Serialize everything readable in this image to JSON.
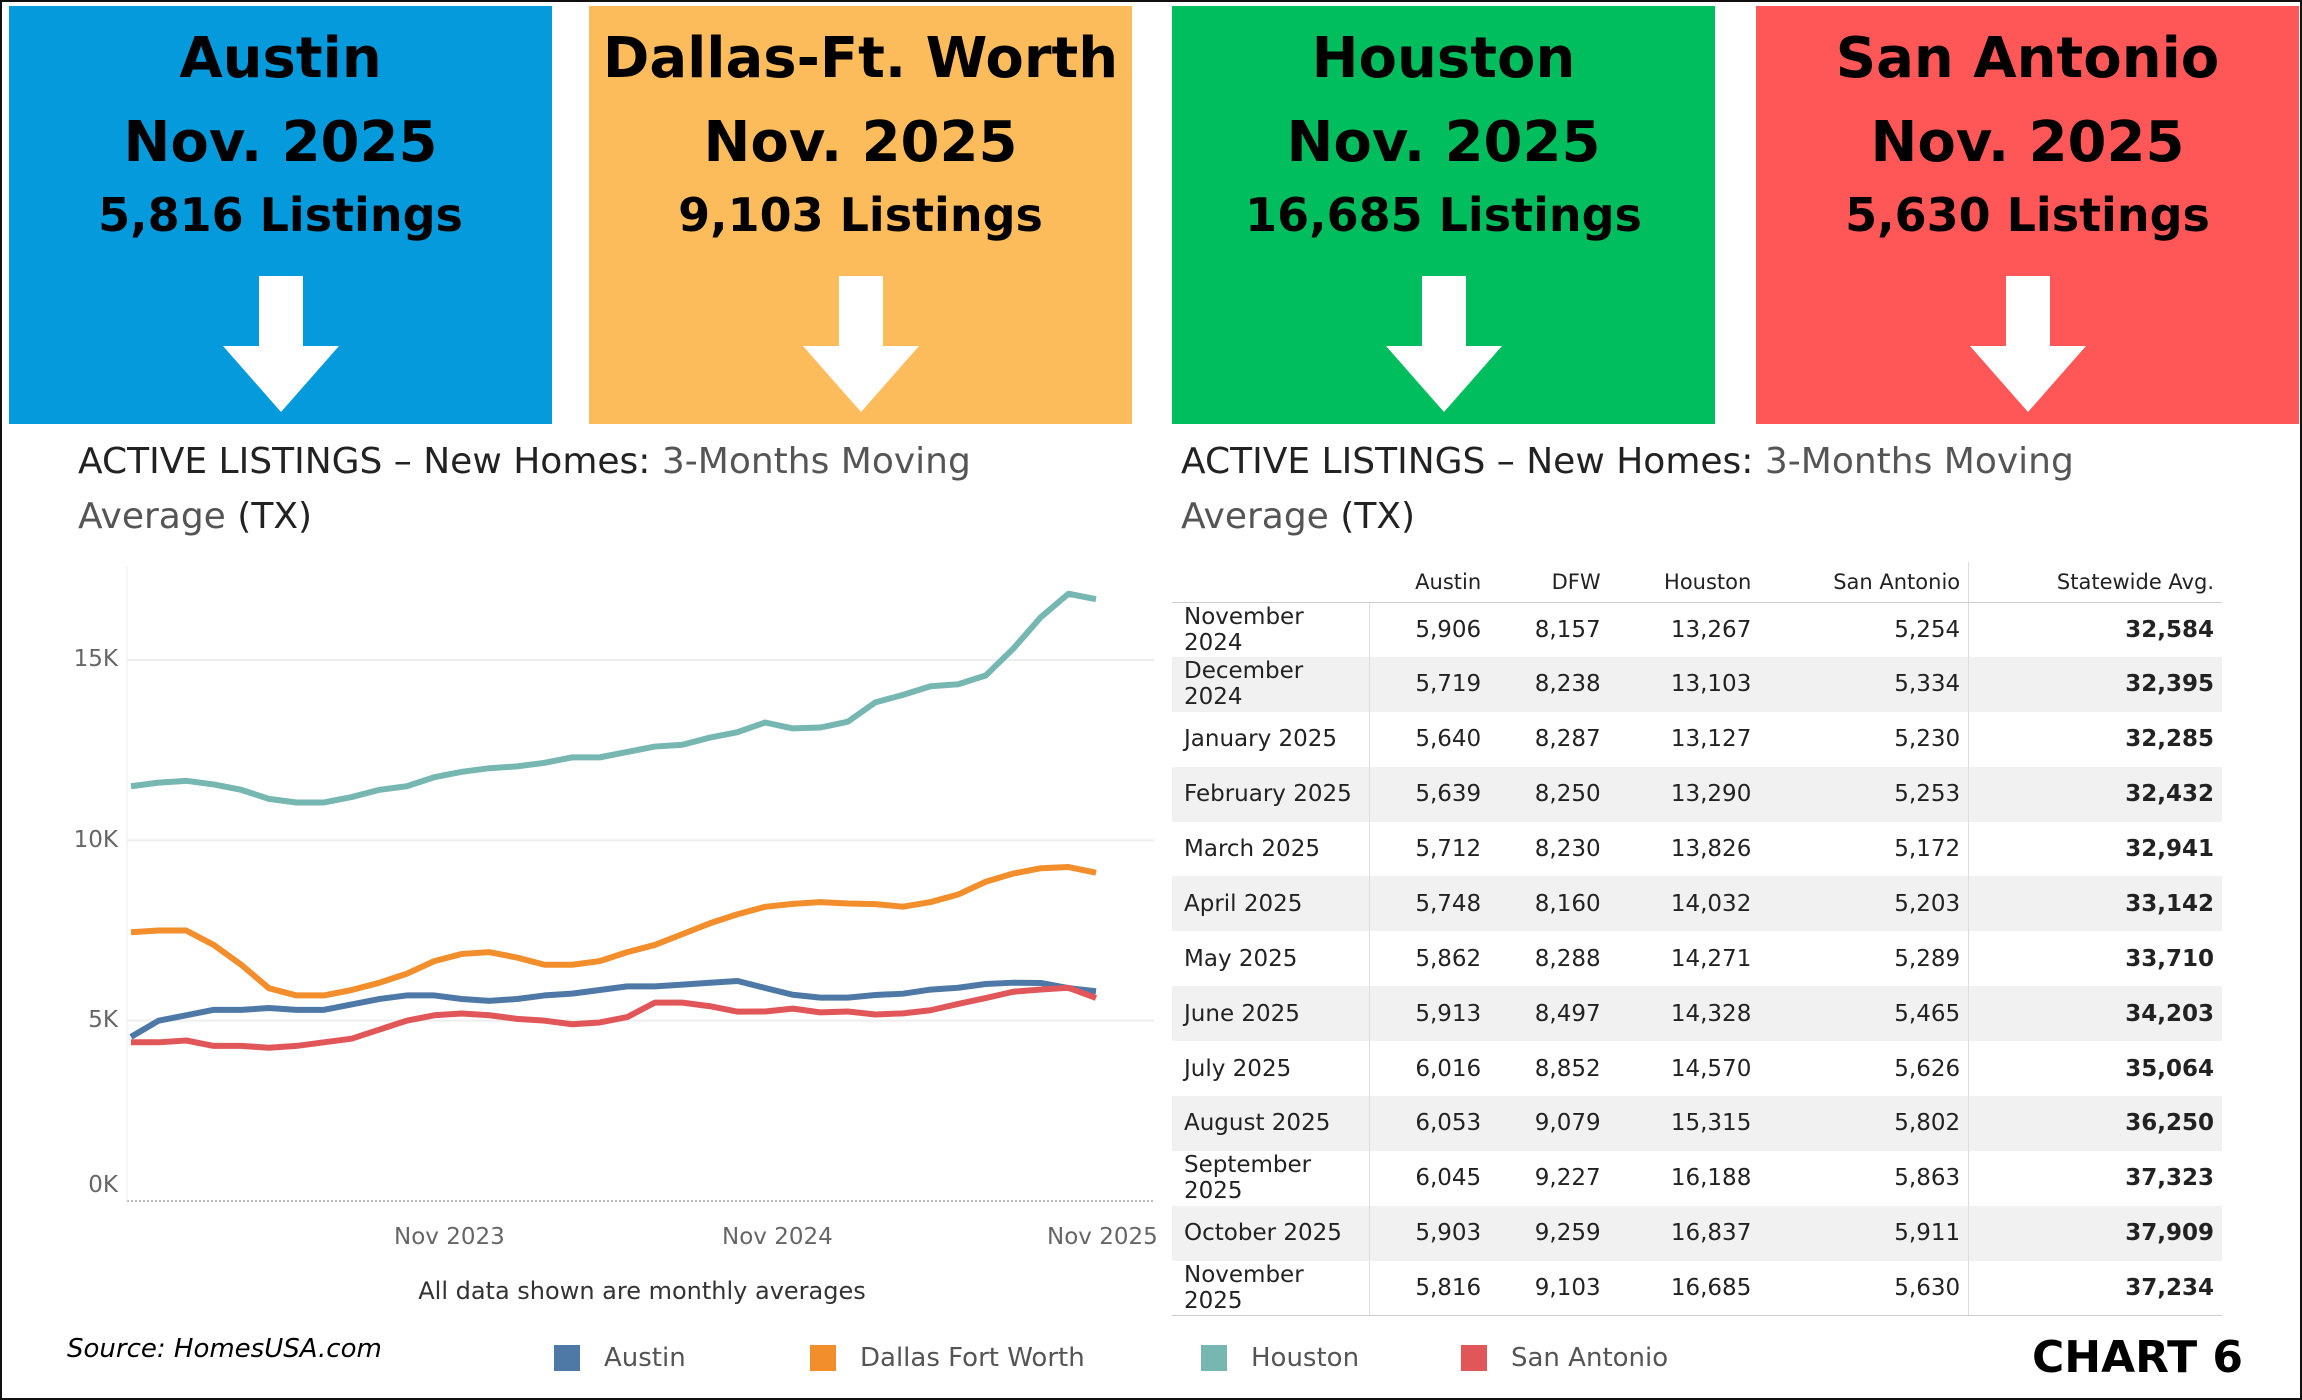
{
  "header_boxes": [
    {
      "city": "Austin",
      "month": "Nov. 2025",
      "listings": "5,816 Listings",
      "color": "#049ADC"
    },
    {
      "city": "Dallas-Ft. Worth",
      "month": "Nov. 2025",
      "listings": "9,103 Listings",
      "color": "#FCBC5C"
    },
    {
      "city": "Houston",
      "month": "Nov. 2025",
      "listings": "16,685 Listings",
      "color": "#00BE5E"
    },
    {
      "city": "San Antonio",
      "month": "Nov. 2025",
      "listings": "5,630 Listings",
      "color": "#FF5757"
    }
  ],
  "arrow_icon": "arrow-down-icon",
  "left_title": {
    "a": "ACTIVE LISTINGS – New Homes: ",
    "b": "3-Months  Moving",
    "c": "Average",
    "d": " (TX)"
  },
  "right_title": {
    "a": "ACTIVE LISTINGS – New Homes: ",
    "b": "3-Months  Moving",
    "c": "Average",
    "d": " (TX)"
  },
  "chart_data": {
    "type": "line",
    "title": "ACTIVE LISTINGS – New Homes: 3-Months Moving Average (TX)",
    "x": [
      "2022-12",
      "2023-01",
      "2023-02",
      "2023-03",
      "2023-04",
      "2023-05",
      "2023-06",
      "2023-07",
      "2023-08",
      "2023-09",
      "2023-10",
      "2023-11",
      "2023-12",
      "2024-01",
      "2024-02",
      "2024-03",
      "2024-04",
      "2024-05",
      "2024-06",
      "2024-07",
      "2024-08",
      "2024-09",
      "2024-10",
      "2024-11",
      "2024-12",
      "2025-01",
      "2025-02",
      "2025-03",
      "2025-04",
      "2025-05",
      "2025-06",
      "2025-07",
      "2025-08",
      "2025-09",
      "2025-10",
      "2025-11"
    ],
    "x_ticks": [
      "Nov 2023",
      "Nov 2024",
      "Nov 2025"
    ],
    "y_ticks": [
      "0K",
      "5K",
      "10K",
      "15K"
    ],
    "ylim": [
      0,
      17500
    ],
    "grid": true,
    "note": "All data shown are monthly averages",
    "legend_position": "bottom",
    "series": [
      {
        "name": "Austin",
        "color": "#4E79A7",
        "values": [
          4550,
          5000,
          5150,
          5300,
          5300,
          5350,
          5300,
          5300,
          5450,
          5600,
          5700,
          5700,
          5600,
          5550,
          5600,
          5700,
          5750,
          5850,
          5950,
          5950,
          6000,
          6050,
          6100,
          5906,
          5719,
          5640,
          5639,
          5712,
          5748,
          5862,
          5913,
          6016,
          6053,
          6045,
          5903,
          5816
        ]
      },
      {
        "name": "Dallas Fort Worth",
        "color": "#F28E2B",
        "values": [
          7450,
          7500,
          7500,
          7100,
          6550,
          5900,
          5700,
          5700,
          5850,
          6050,
          6300,
          6650,
          6850,
          6900,
          6750,
          6550,
          6550,
          6650,
          6900,
          7100,
          7400,
          7700,
          7950,
          8157,
          8238,
          8287,
          8250,
          8230,
          8160,
          8288,
          8497,
          8852,
          9079,
          9227,
          9259,
          9103
        ]
      },
      {
        "name": "Houston",
        "color": "#76B7B2",
        "values": [
          11500,
          11600,
          11650,
          11550,
          11400,
          11150,
          11050,
          11050,
          11200,
          11400,
          11500,
          11750,
          11900,
          12000,
          12050,
          12150,
          12300,
          12300,
          12450,
          12600,
          12650,
          12850,
          13000,
          13267,
          13103,
          13127,
          13290,
          13826,
          14032,
          14271,
          14328,
          14570,
          15315,
          16188,
          16837,
          16685
        ]
      },
      {
        "name": "San Antonio",
        "color": "#E15759",
        "values": [
          4400,
          4400,
          4450,
          4300,
          4300,
          4250,
          4300,
          4400,
          4500,
          4750,
          5000,
          5150,
          5200,
          5150,
          5050,
          5000,
          4900,
          4950,
          5100,
          5500,
          5500,
          5400,
          5250,
          5254,
          5334,
          5230,
          5253,
          5172,
          5203,
          5289,
          5465,
          5626,
          5802,
          5863,
          5911,
          5630
        ]
      }
    ]
  },
  "source": "Source: HomesUSA.com",
  "chart_label": "CHART 6",
  "table": {
    "headers": [
      "",
      "Austin",
      "DFW",
      "Houston",
      "San Antonio",
      "Statewide Avg."
    ],
    "rows": [
      [
        "November 2024",
        "5,906",
        "8,157",
        "13,267",
        "5,254",
        "32,584"
      ],
      [
        "December 2024",
        "5,719",
        "8,238",
        "13,103",
        "5,334",
        "32,395"
      ],
      [
        "January 2025",
        "5,640",
        "8,287",
        "13,127",
        "5,230",
        "32,285"
      ],
      [
        "February 2025",
        "5,639",
        "8,250",
        "13,290",
        "5,253",
        "32,432"
      ],
      [
        "March 2025",
        "5,712",
        "8,230",
        "13,826",
        "5,172",
        "32,941"
      ],
      [
        "April 2025",
        "5,748",
        "8,160",
        "14,032",
        "5,203",
        "33,142"
      ],
      [
        "May 2025",
        "5,862",
        "8,288",
        "14,271",
        "5,289",
        "33,710"
      ],
      [
        "June 2025",
        "5,913",
        "8,497",
        "14,328",
        "5,465",
        "34,203"
      ],
      [
        "July 2025",
        "6,016",
        "8,852",
        "14,570",
        "5,626",
        "35,064"
      ],
      [
        "August 2025",
        "6,053",
        "9,079",
        "15,315",
        "5,802",
        "36,250"
      ],
      [
        "September 2025",
        "6,045",
        "9,227",
        "16,188",
        "5,863",
        "37,323"
      ],
      [
        "October 2025",
        "5,903",
        "9,259",
        "16,837",
        "5,911",
        "37,909"
      ],
      [
        "November 2025",
        "5,816",
        "9,103",
        "16,685",
        "5,630",
        "37,234"
      ]
    ]
  }
}
